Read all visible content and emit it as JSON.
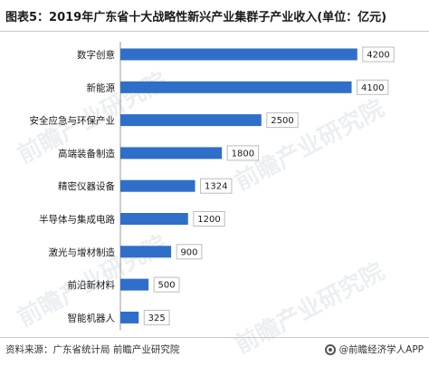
{
  "title": "图表5：2019年广东省十大战略性新兴产业集群子产业收入(单位：亿元)",
  "footer": {
    "source": "资料来源：广东省统计局 前瞻产业研究院",
    "brand": "@前瞻经济学人APP"
  },
  "watermark": "前瞻产业研究院",
  "colors": {
    "bar": "#2f6fc9"
  },
  "chart_data": {
    "type": "bar",
    "orientation": "horizontal",
    "title": "图表5：2019年广东省十大战略性新兴产业集群子产业收入(单位：亿元)",
    "xlabel": "",
    "ylabel": "",
    "xlim": [
      0,
      4300
    ],
    "grid": false,
    "legend": "none",
    "categories": [
      "数字创意",
      "新能源",
      "安全应急与环保产业",
      "高端装备制造",
      "精密仪器设备",
      "半导体与集成电路",
      "激光与增材制造",
      "前沿新材料",
      "智能机器人"
    ],
    "values": [
      4200,
      4100,
      2500,
      1800,
      1324,
      1200,
      900,
      500,
      325
    ]
  }
}
